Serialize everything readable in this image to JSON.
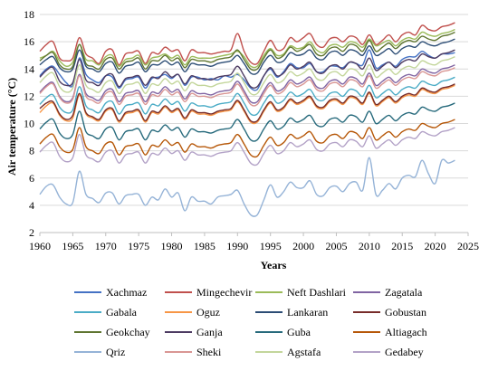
{
  "chart_data": {
    "type": "line",
    "xlabel": "Years",
    "ylabel": "Air temperature (°C)",
    "xlim": [
      1960,
      2025
    ],
    "ylim": [
      2,
      18
    ],
    "x_ticks": [
      "1960",
      "1965",
      "1970",
      "1975",
      "1980",
      "1985",
      "1990",
      "1995",
      "2000",
      "2005",
      "2010",
      "2015",
      "2020",
      "2025"
    ],
    "y_ticks": [
      "2",
      "4",
      "6",
      "8",
      "10",
      "12",
      "14",
      "16",
      "18"
    ],
    "grid": true,
    "legend_position": "bottom",
    "x": [
      1960,
      1961,
      1962,
      1963,
      1964,
      1965,
      1966,
      1967,
      1968,
      1969,
      1970,
      1971,
      1972,
      1973,
      1974,
      1975,
      1976,
      1977,
      1978,
      1979,
      1980,
      1981,
      1982,
      1983,
      1984,
      1985,
      1986,
      1987,
      1988,
      1989,
      1990,
      1991,
      1992,
      1993,
      1994,
      1995,
      1996,
      1997,
      1998,
      1999,
      2000,
      2001,
      2002,
      2003,
      2004,
      2005,
      2006,
      2007,
      2008,
      2009,
      2010,
      2011,
      2012,
      2013,
      2014,
      2015,
      2016,
      2017,
      2018,
      2019,
      2020,
      2021,
      2022,
      2023
    ],
    "series": [
      {
        "name": "Xachmaz",
        "color": "#4472c4",
        "values": [
          13.5,
          14,
          14.2,
          13.6,
          13,
          12.8,
          14.8,
          13.6,
          13.2,
          13,
          13.5,
          13.4,
          12.6,
          13.2,
          13.3,
          13.4,
          12.6,
          13.3,
          13.4,
          13.6,
          13.3,
          13.6,
          12.8,
          13.4,
          13.4,
          13.2,
          13.3,
          13.2,
          13.5,
          13.4,
          13.6,
          13.2,
          12.6,
          12.5,
          13.5,
          14,
          13.4,
          13.8,
          14.4,
          14.1,
          14.1,
          14.4,
          13.8,
          13.8,
          14.2,
          14.2,
          14.1,
          14.5,
          14.4,
          14.3,
          15.4,
          14.1,
          14.3,
          14.5,
          14.2,
          14.7,
          14.9,
          14.9,
          15.3,
          15,
          14.8,
          15.1,
          15.1,
          15.2
        ]
      },
      {
        "name": "Mingechevir",
        "color": "#c0504d",
        "values": [
          15.3,
          15.8,
          16,
          14.8,
          14.6,
          14.8,
          16.3,
          15.1,
          14.8,
          14.4,
          15.3,
          15.4,
          14.3,
          15.1,
          15.2,
          15.3,
          14.4,
          15.2,
          15.1,
          15.6,
          15.3,
          15.4,
          14.6,
          15.4,
          15.2,
          15.2,
          15.1,
          15.2,
          15.3,
          15.4,
          16.6,
          15.3,
          14.5,
          14.4,
          15.3,
          16.1,
          15.4,
          15.5,
          16.3,
          16,
          16.3,
          16.6,
          15.8,
          15.6,
          16.2,
          16.3,
          16,
          16.4,
          16.3,
          15.8,
          16.5,
          15.8,
          16.1,
          16.5,
          16,
          16.5,
          16.7,
          16.5,
          17.2,
          16.9,
          16.8,
          17.1,
          17.2,
          17.4
        ]
      },
      {
        "name": "Neft Dashlari",
        "color": "#9bbb59",
        "values": [
          14.8,
          15,
          15.3,
          14.6,
          14.2,
          14.5,
          15.8,
          14.7,
          14.6,
          14.3,
          14.9,
          15,
          14.2,
          14.7,
          14.8,
          15,
          14.3,
          14.8,
          14.9,
          15.1,
          14.8,
          15,
          14.3,
          14.9,
          14.8,
          14.8,
          14.8,
          14.9,
          15,
          15.1,
          15.3,
          14.9,
          14.2,
          14.2,
          15,
          15.5,
          15,
          15.1,
          15.7,
          15.5,
          15.6,
          16,
          15.4,
          15.2,
          15.7,
          15.8,
          15.6,
          16,
          15.9,
          15.6,
          16.2,
          15.7,
          15.9,
          16.1,
          15.7,
          16.1,
          16.3,
          16.2,
          16.7,
          16.5,
          16.4,
          16.6,
          16.7,
          16.9
        ]
      },
      {
        "name": "Zagatala",
        "color": "#8064a2",
        "values": [
          12.3,
          12.8,
          13,
          12,
          11.6,
          11.9,
          13.6,
          12.2,
          11.9,
          11.7,
          12.4,
          12.5,
          11.6,
          12.2,
          12.3,
          12.4,
          11.6,
          12.3,
          12.2,
          12.7,
          12.3,
          12.5,
          11.8,
          12.4,
          12.2,
          12.2,
          12.1,
          12.3,
          12.4,
          12.5,
          13.1,
          12.4,
          11.6,
          11.6,
          12.4,
          13,
          12.4,
          12.6,
          13.2,
          12.9,
          13.1,
          13.4,
          12.7,
          12.6,
          13.1,
          13.2,
          12.9,
          13.4,
          13.3,
          12.9,
          13.7,
          12.8,
          13.1,
          13.4,
          13,
          13.4,
          13.6,
          13.5,
          14,
          13.8,
          13.7,
          14,
          14.1,
          14.3
        ]
      },
      {
        "name": "Gabala",
        "color": "#4bacc6",
        "values": [
          11.4,
          11.9,
          12.1,
          11.2,
          10.8,
          11,
          12.7,
          11.3,
          11,
          10.8,
          11.5,
          11.6,
          10.7,
          11.3,
          11.4,
          11.5,
          10.7,
          11.4,
          11.3,
          11.8,
          11.4,
          11.6,
          10.9,
          11.5,
          11.3,
          11.3,
          11.2,
          11.4,
          11.5,
          11.6,
          12.2,
          11.5,
          10.7,
          10.7,
          11.5,
          12.1,
          11.5,
          11.7,
          12.3,
          12,
          12.2,
          12.5,
          11.8,
          11.7,
          12.2,
          12.3,
          12,
          12.5,
          12.4,
          12,
          12.8,
          11.9,
          12.2,
          12.5,
          12.1,
          12.5,
          12.7,
          12.6,
          13.1,
          12.9,
          12.8,
          13.1,
          13.2,
          13.4
        ]
      },
      {
        "name": "Oguz",
        "color": "#f79646",
        "values": [
          10.8,
          11.3,
          11.5,
          10.6,
          10.2,
          10.4,
          12.1,
          10.7,
          10.4,
          10.2,
          10.9,
          11,
          10.1,
          10.7,
          10.8,
          10.9,
          10.1,
          10.8,
          10.7,
          11.2,
          10.8,
          11,
          10.3,
          10.9,
          10.7,
          10.7,
          10.6,
          10.8,
          10.9,
          11,
          11.6,
          10.9,
          10.1,
          10.1,
          10.9,
          11.5,
          10.9,
          11.1,
          11.7,
          11.4,
          11.6,
          11.9,
          11.2,
          11.1,
          11.6,
          11.7,
          11.4,
          11.9,
          11.8,
          11.4,
          12.2,
          11.3,
          11.6,
          11.9,
          11.5,
          11.9,
          12.1,
          12,
          12.5,
          12.3,
          12.2,
          12.5,
          12.6,
          12.8
        ]
      },
      {
        "name": "Lankaran",
        "color": "#2c4d75",
        "values": [
          14.3,
          14.7,
          14.9,
          14.1,
          13.8,
          14,
          15.4,
          14.2,
          14,
          13.8,
          14.4,
          14.5,
          13.7,
          14.2,
          14.3,
          14.5,
          13.8,
          14.3,
          14.3,
          14.6,
          14.3,
          14.5,
          13.8,
          14.4,
          14.3,
          14.3,
          14.2,
          14.4,
          14.5,
          14.6,
          15,
          14.4,
          13.7,
          13.7,
          14.5,
          15,
          14.5,
          14.6,
          15.2,
          15,
          15.1,
          15.4,
          14.8,
          14.7,
          15.2,
          15.3,
          15,
          15.4,
          15.3,
          15,
          15.7,
          15,
          15.2,
          15.5,
          15.1,
          15.5,
          15.7,
          15.6,
          16,
          15.8,
          15.7,
          15.9,
          16,
          16.2
        ]
      },
      {
        "name": "Gobustan",
        "color": "#772c2a",
        "values": [
          11.1,
          11.5,
          11.6,
          10.7,
          10.3,
          10.6,
          12.2,
          10.8,
          10.5,
          10.3,
          11,
          11.1,
          10.2,
          10.8,
          10.9,
          11,
          10.2,
          10.9,
          10.8,
          11.3,
          10.9,
          11.1,
          10.4,
          11,
          10.8,
          10.8,
          10.7,
          10.9,
          11,
          11.1,
          11.7,
          11,
          10.2,
          10.2,
          11,
          11.6,
          11,
          11.2,
          11.8,
          11.5,
          11.7,
          12,
          11.3,
          11.2,
          11.7,
          11.8,
          11.5,
          12,
          11.9,
          11.5,
          12.3,
          11.4,
          11.7,
          12,
          11.6,
          12,
          12.2,
          12.1,
          12.6,
          12.4,
          12.3,
          12.6,
          12.7,
          12.9
        ]
      },
      {
        "name": "Geokchay",
        "color": "#5f7530",
        "values": [
          14.6,
          15,
          15.2,
          14.3,
          14,
          14.2,
          15.8,
          14.4,
          14.2,
          14,
          14.7,
          14.8,
          14,
          14.5,
          14.6,
          14.8,
          14,
          14.6,
          14.6,
          15,
          14.6,
          14.8,
          14.1,
          14.7,
          14.6,
          14.6,
          14.5,
          14.7,
          14.8,
          14.9,
          15.4,
          14.7,
          14,
          14,
          14.8,
          15.4,
          14.8,
          15,
          15.6,
          15.3,
          15.5,
          15.8,
          15.1,
          15,
          15.5,
          15.6,
          15.3,
          15.8,
          15.7,
          15.3,
          16.1,
          15.3,
          15.6,
          15.9,
          15.5,
          15.9,
          16.1,
          16,
          16.4,
          16.2,
          16.1,
          16.4,
          16.5,
          16.7
        ]
      },
      {
        "name": "Ganja",
        "color": "#4d3b62",
        "values": [
          13.4,
          13.9,
          14.1,
          13.1,
          12.8,
          13,
          14.7,
          13.2,
          13,
          12.8,
          13.5,
          13.6,
          12.7,
          13.3,
          13.4,
          13.5,
          12.8,
          13.4,
          13.3,
          13.8,
          13.4,
          13.6,
          12.9,
          13.5,
          13.3,
          13.3,
          13.2,
          13.4,
          13.5,
          13.6,
          14.2,
          13.5,
          12.7,
          12.7,
          13.5,
          14.1,
          13.5,
          13.7,
          14.3,
          14,
          14.2,
          14.5,
          13.8,
          13.7,
          14.2,
          14.3,
          14,
          14.5,
          14.4,
          14,
          14.8,
          13.9,
          14.2,
          14.5,
          14.1,
          14.5,
          14.7,
          14.6,
          15.1,
          14.9,
          14.8,
          15.1,
          15.2,
          15.4
        ]
      },
      {
        "name": "Guba",
        "color": "#276a7c",
        "values": [
          9.6,
          10.1,
          10.3,
          9.3,
          8.9,
          9.2,
          10.9,
          9.4,
          9.1,
          8.9,
          9.6,
          9.7,
          8.8,
          9.4,
          9.5,
          9.6,
          8.8,
          9.5,
          9.4,
          9.9,
          9.5,
          9.7,
          9,
          9.6,
          9.4,
          9.4,
          9.3,
          9.5,
          9.6,
          9.7,
          10.3,
          9.6,
          8.8,
          8.8,
          9.6,
          10.2,
          9.6,
          9.8,
          10.4,
          10.1,
          10.3,
          10.6,
          9.9,
          9.8,
          10.3,
          10.4,
          10.1,
          10.6,
          10.5,
          10.1,
          10.9,
          10,
          10.3,
          10.6,
          10.2,
          10.6,
          10.8,
          10.7,
          11.2,
          11,
          10.9,
          11.2,
          11.3,
          11.5
        ]
      },
      {
        "name": "Altiagach",
        "color": "#b65708",
        "values": [
          8.5,
          9,
          9.2,
          8.3,
          7.9,
          8.1,
          9.7,
          8.3,
          8,
          7.8,
          8.5,
          8.6,
          7.7,
          8.3,
          8.4,
          8.5,
          7.7,
          8.4,
          8.3,
          8.8,
          8.4,
          8.6,
          7.9,
          8.5,
          8.3,
          8.3,
          8.2,
          8.4,
          8.5,
          8.6,
          9.2,
          8.5,
          7.7,
          7.6,
          8.4,
          9,
          8.4,
          8.6,
          9.2,
          8.9,
          9.1,
          9.4,
          8.7,
          8.6,
          9.1,
          9.2,
          8.9,
          9.4,
          9.3,
          8.9,
          9.7,
          8.8,
          9.1,
          9.4,
          9,
          9.4,
          9.6,
          9.5,
          10,
          9.8,
          9.7,
          10,
          10.1,
          10.3
        ]
      },
      {
        "name": "Qriz",
        "color": "#95b3d7",
        "values": [
          4.8,
          5.4,
          5.5,
          4.6,
          4.1,
          4.2,
          6.5,
          4.8,
          4.5,
          4.2,
          4.9,
          4.9,
          4.1,
          4.7,
          4.8,
          4.8,
          4,
          4.6,
          4.4,
          5.2,
          4.6,
          4.9,
          3.6,
          4.6,
          4.3,
          4.3,
          4.1,
          4.6,
          4.7,
          4.8,
          5.1,
          4.1,
          3.3,
          3.3,
          4.4,
          5.5,
          4.6,
          5,
          5.7,
          5.3,
          5.3,
          5.8,
          4.8,
          4.7,
          5.3,
          5.4,
          5,
          5.6,
          5.7,
          5.1,
          7.5,
          4.8,
          5.1,
          5.6,
          5.2,
          6,
          6.2,
          6.1,
          7.3,
          6.3,
          5.6,
          7.3,
          7.1,
          7.3
        ]
      },
      {
        "name": "Sheki",
        "color": "#d99694",
        "values": [
          12.2,
          12.7,
          12.9,
          11.9,
          11.5,
          11.8,
          13.5,
          12,
          11.7,
          11.5,
          12.2,
          12.3,
          11.4,
          12,
          12.1,
          12.2,
          11.4,
          12.1,
          12,
          12.5,
          12.1,
          12.3,
          11.6,
          12.2,
          12,
          12,
          11.9,
          12.1,
          12.2,
          12.3,
          12.9,
          12.2,
          11.4,
          11.4,
          12.2,
          12.8,
          12.2,
          12.4,
          13,
          12.7,
          12.9,
          13.2,
          12.5,
          12.4,
          12.9,
          13,
          12.7,
          13.2,
          13.1,
          12.7,
          13.5,
          12.6,
          12.9,
          13.2,
          12.8,
          13.2,
          13.4,
          13.3,
          13.8,
          13.6,
          13.5,
          13.8,
          13.9,
          14.1
        ]
      },
      {
        "name": "Agstafa",
        "color": "#c3d69b",
        "values": [
          13,
          13.5,
          13.7,
          12.7,
          12.3,
          12.6,
          14.3,
          12.8,
          12.5,
          12.3,
          13,
          13.1,
          12.2,
          12.8,
          12.9,
          13,
          12.2,
          12.9,
          12.8,
          13.3,
          12.9,
          13.1,
          12.4,
          13,
          12.8,
          12.8,
          12.7,
          12.9,
          13,
          13.1,
          13.7,
          13,
          12.2,
          12.2,
          13,
          13.6,
          13,
          13.2,
          13.8,
          13.5,
          13.7,
          14,
          13.3,
          13.2,
          13.7,
          13.8,
          13.5,
          14,
          13.9,
          13.5,
          14.3,
          13.4,
          13.7,
          14,
          13.6,
          14,
          14.2,
          14.1,
          14.6,
          14.4,
          14.3,
          14.6,
          14.7,
          14.9
        ]
      },
      {
        "name": "Gedabey",
        "color": "#b3a2c7",
        "values": [
          7.9,
          8.4,
          8.6,
          7.6,
          7.2,
          7.5,
          9.2,
          7.7,
          7.4,
          7.2,
          7.9,
          8,
          7.1,
          7.7,
          7.8,
          7.9,
          7.1,
          7.8,
          7.7,
          8.2,
          7.8,
          8,
          7.3,
          7.9,
          7.7,
          7.7,
          7.6,
          7.8,
          7.9,
          8,
          8.6,
          7.9,
          7.1,
          7,
          7.8,
          8.4,
          7.8,
          8,
          8.6,
          8.3,
          8.5,
          8.8,
          8.1,
          8,
          8.5,
          8.6,
          8.3,
          8.8,
          8.7,
          8.3,
          9.1,
          8.2,
          8.5,
          8.8,
          8.4,
          8.8,
          9,
          8.9,
          9.4,
          9.2,
          9.1,
          9.4,
          9.5,
          9.7
        ]
      }
    ]
  }
}
